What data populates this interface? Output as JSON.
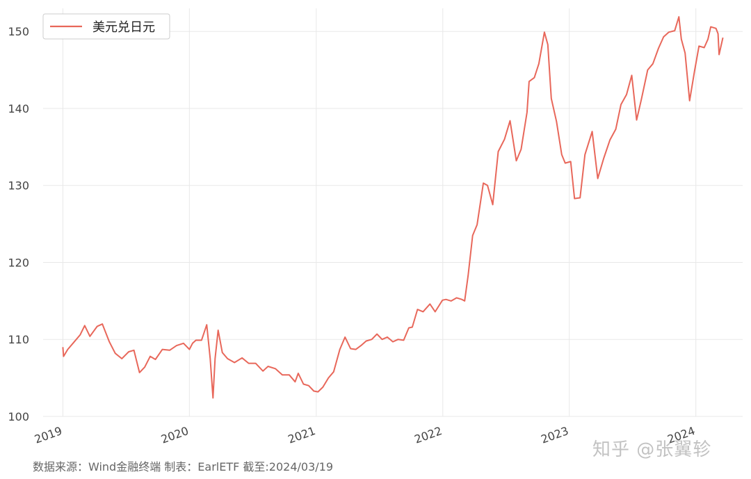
{
  "chart_data": {
    "type": "line",
    "title": "",
    "xlabel": "",
    "ylabel": "",
    "ylim": [
      100,
      153
    ],
    "xlim": [
      "2018-11-05",
      "2024-05-15"
    ],
    "yticks": [
      100,
      110,
      120,
      130,
      140,
      150
    ],
    "xticks": [
      "2019",
      "2020",
      "2021",
      "2022",
      "2023",
      "2024"
    ],
    "grid": true,
    "legend_position": "top-left",
    "series": [
      {
        "name": "美元兑日元",
        "color": "#E8675A",
        "x": [
          "2019-01-01",
          "2019-01-03",
          "2019-01-15",
          "2019-02-01",
          "2019-02-20",
          "2019-03-05",
          "2019-03-20",
          "2019-04-10",
          "2019-04-25",
          "2019-05-15",
          "2019-06-01",
          "2019-06-20",
          "2019-07-10",
          "2019-07-25",
          "2019-08-10",
          "2019-08-25",
          "2019-09-10",
          "2019-09-25",
          "2019-10-15",
          "2019-11-05",
          "2019-11-25",
          "2019-12-15",
          "2020-01-01",
          "2020-01-10",
          "2020-01-20",
          "2020-02-05",
          "2020-02-20",
          "2020-03-01",
          "2020-03-09",
          "2020-03-15",
          "2020-03-24",
          "2020-04-05",
          "2020-04-20",
          "2020-05-10",
          "2020-06-01",
          "2020-06-20",
          "2020-07-10",
          "2020-07-31",
          "2020-08-15",
          "2020-09-05",
          "2020-09-25",
          "2020-10-15",
          "2020-11-01",
          "2020-11-10",
          "2020-11-25",
          "2020-12-10",
          "2020-12-25",
          "2021-01-06",
          "2021-01-20",
          "2021-02-05",
          "2021-02-20",
          "2021-03-10",
          "2021-03-25",
          "2021-04-10",
          "2021-04-25",
          "2021-05-10",
          "2021-05-25",
          "2021-06-10",
          "2021-06-25",
          "2021-07-10",
          "2021-07-25",
          "2021-08-10",
          "2021-08-25",
          "2021-09-10",
          "2021-09-25",
          "2021-10-05",
          "2021-10-20",
          "2021-11-05",
          "2021-11-25",
          "2021-12-10",
          "2021-12-31",
          "2022-01-10",
          "2022-01-25",
          "2022-02-10",
          "2022-02-25",
          "2022-03-05",
          "2022-03-15",
          "2022-03-28",
          "2022-04-10",
          "2022-04-28",
          "2022-05-10",
          "2022-05-25",
          "2022-06-10",
          "2022-06-28",
          "2022-07-14",
          "2022-08-01",
          "2022-08-15",
          "2022-09-01",
          "2022-09-07",
          "2022-09-22",
          "2022-10-05",
          "2022-10-21",
          "2022-10-31",
          "2022-11-10",
          "2022-11-25",
          "2022-12-10",
          "2022-12-20",
          "2023-01-05",
          "2023-01-16",
          "2023-02-01",
          "2023-02-15",
          "2023-03-08",
          "2023-03-24",
          "2023-04-10",
          "2023-04-28",
          "2023-05-15",
          "2023-05-30",
          "2023-06-15",
          "2023-06-30",
          "2023-07-14",
          "2023-07-28",
          "2023-08-15",
          "2023-08-30",
          "2023-09-15",
          "2023-09-30",
          "2023-10-15",
          "2023-11-01",
          "2023-11-13",
          "2023-11-20",
          "2023-12-01",
          "2023-12-14",
          "2023-12-28",
          "2024-01-10",
          "2024-01-25",
          "2024-02-05",
          "2024-02-13",
          "2024-02-28",
          "2024-03-05",
          "2024-03-08",
          "2024-03-13",
          "2024-03-19"
        ],
        "y": [
          109.0,
          107.8,
          108.7,
          109.6,
          110.6,
          111.8,
          110.4,
          111.7,
          112.0,
          109.7,
          108.2,
          107.5,
          108.4,
          108.6,
          105.7,
          106.4,
          107.8,
          107.4,
          108.7,
          108.6,
          109.2,
          109.5,
          108.7,
          109.5,
          109.9,
          109.9,
          111.9,
          107.5,
          102.4,
          107.5,
          111.2,
          108.3,
          107.5,
          107.0,
          107.6,
          106.9,
          106.9,
          105.9,
          106.5,
          106.2,
          105.4,
          105.4,
          104.5,
          105.6,
          104.2,
          104.0,
          103.3,
          103.2,
          103.8,
          105.0,
          105.8,
          108.7,
          110.3,
          108.8,
          108.7,
          109.2,
          109.8,
          110.0,
          110.7,
          110.0,
          110.3,
          109.7,
          110.0,
          109.9,
          111.5,
          111.6,
          113.9,
          113.6,
          114.6,
          113.6,
          115.1,
          115.2,
          115.0,
          115.4,
          115.2,
          115.0,
          118.3,
          123.5,
          124.9,
          130.3,
          130.0,
          127.5,
          134.4,
          136.0,
          138.4,
          133.2,
          134.7,
          139.5,
          143.5,
          144.0,
          145.8,
          149.9,
          148.3,
          141.3,
          138.3,
          134.0,
          132.9,
          133.1,
          128.3,
          128.4,
          134.0,
          137.0,
          130.9,
          133.5,
          135.9,
          137.3,
          140.5,
          141.8,
          144.3,
          138.5,
          141.2,
          145.0,
          145.8,
          147.8,
          149.3,
          149.9,
          150.1,
          151.9,
          149.0,
          147.2,
          141.0,
          144.8,
          148.1,
          147.9,
          149.0,
          150.6,
          150.4,
          149.7,
          147.0,
          148.0,
          149.2
        ]
      }
    ]
  },
  "source_note": "数据来源：Wind金融终端 制表：EarlETF 截至:2024/03/19",
  "watermark": "知乎 @张翼轸"
}
